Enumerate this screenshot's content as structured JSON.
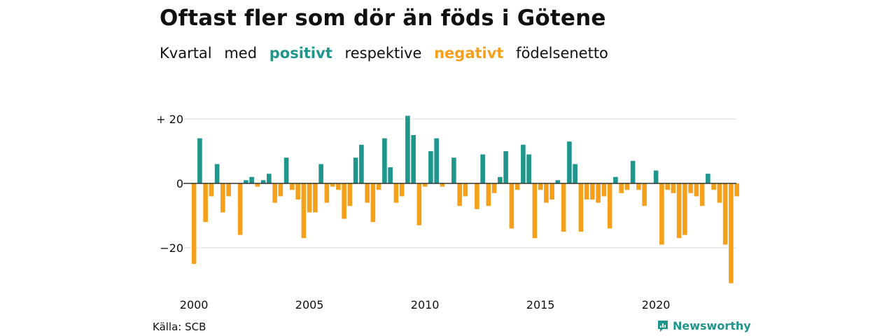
{
  "title": "Oftast fler som dör än föds i Götene",
  "subtitle": {
    "w1": "Kvartal",
    "w2": "med",
    "positive": "positivt",
    "w3": "respektive",
    "negative": "negativt",
    "w4": "födelsenetto"
  },
  "colors": {
    "positive": "#1f968b",
    "negative": "#f5a01a",
    "grid": "#dddddd",
    "zero": "#333333"
  },
  "source": "Källa: SCB",
  "brand": {
    "name": "Newsworthy",
    "icon": "newsworthy-logo-icon"
  },
  "chart_data": {
    "type": "bar",
    "ylim": [
      -32,
      23
    ],
    "y_ticks": [
      {
        "value": 20,
        "label": "+ 20"
      },
      {
        "value": 0,
        "label": "0"
      },
      {
        "value": -20,
        "label": "−20"
      }
    ],
    "x_ticks": [
      {
        "year": 2000,
        "label": "2000"
      },
      {
        "year": 2005,
        "label": "2005"
      },
      {
        "year": 2010,
        "label": "2010"
      },
      {
        "year": 2015,
        "label": "2015"
      },
      {
        "year": 2020,
        "label": "2020"
      }
    ],
    "start_year": 2000,
    "grid": true,
    "values": [
      -25,
      14,
      -12,
      -4,
      6,
      -9,
      -4,
      0,
      -16,
      1,
      2,
      -1,
      1,
      3,
      -6,
      -4,
      8,
      -2,
      -5,
      -17,
      -9,
      -9,
      6,
      -6,
      -1,
      -2,
      -11,
      -7,
      8,
      12,
      -6,
      -12,
      -2,
      14,
      5,
      -6,
      -4,
      21,
      15,
      -13,
      -1,
      10,
      14,
      -1,
      0,
      8,
      -7,
      -4,
      0,
      -8,
      9,
      -7,
      -3,
      2,
      10,
      -14,
      -2,
      12,
      9,
      -17,
      -2,
      -6,
      -5,
      1,
      -15,
      13,
      6,
      -15,
      -5,
      -5,
      -6,
      -4,
      -14,
      2,
      -3,
      -2,
      7,
      -2,
      -7,
      0,
      4,
      -19,
      -2,
      -3,
      -17,
      -16,
      -3,
      -4,
      -7,
      3,
      -2,
      -6,
      -19,
      -31,
      -4
    ]
  }
}
